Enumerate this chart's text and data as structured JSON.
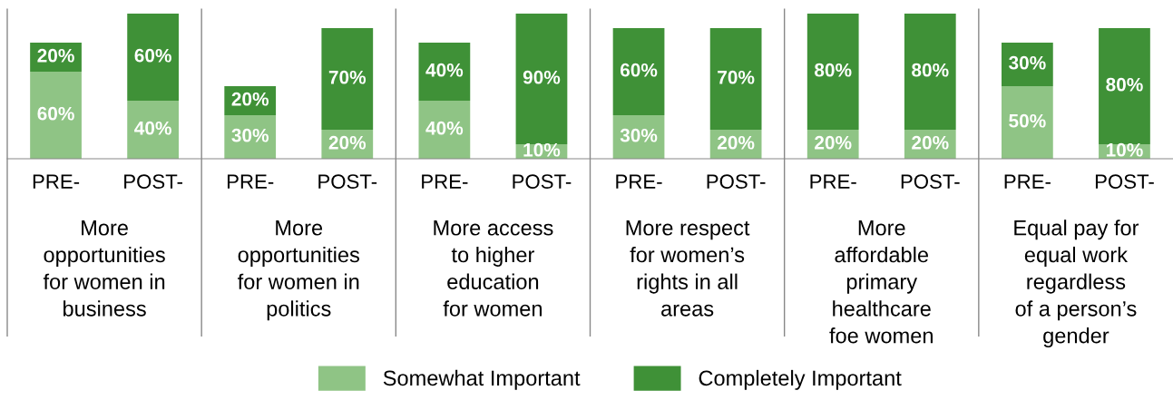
{
  "chart_data": {
    "type": "bar",
    "stacked": true,
    "legend": "bottom",
    "categories": [
      "PRE-",
      "POST-",
      "PRE-",
      "POST-",
      "PRE-",
      "POST-",
      "PRE-",
      "POST-",
      "PRE-",
      "POST-",
      "PRE-",
      "POST-"
    ],
    "series": [
      {
        "name": "Somewhat Important",
        "color": "#8fc485",
        "values": [
          60,
          40,
          30,
          20,
          40,
          10,
          30,
          20,
          20,
          20,
          50,
          10
        ],
        "value_labels": [
          "60%",
          "40%",
          "30%",
          "20%",
          "40%",
          "10%",
          "30%",
          "20%",
          "20%",
          "20%",
          "50%",
          "10%"
        ]
      },
      {
        "name": "Completely Important",
        "color": "#3f9137",
        "values": [
          20,
          60,
          20,
          70,
          40,
          90,
          60,
          70,
          80,
          80,
          30,
          80
        ],
        "value_labels": [
          "20%",
          "60%",
          "20%",
          "70%",
          "40%",
          "90%",
          "60%",
          "70%",
          "80%",
          "80%",
          "30%",
          "80%"
        ]
      }
    ],
    "annotations": [
      "More\nopportunities\nfor women in\nbusiness",
      "More\nopportunities\nfor women in\npolitics",
      "More access\nto higher\neducation\nfor women",
      "More respect\nfor women’s\nrights in all\nareas",
      "More\naffordable\nprimary\nhealthcare\nfoe women",
      "Equal pay for\nequal work\nregardless\nof a person’s\ngender"
    ]
  }
}
